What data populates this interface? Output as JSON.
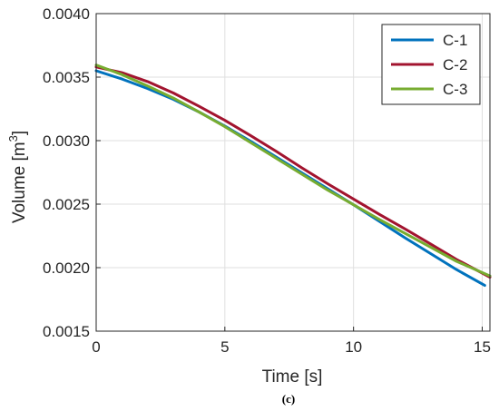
{
  "chart_data": {
    "type": "line",
    "xlabel": "Time [s]",
    "ylabel_main": "Volume [m",
    "ylabel_sup": "3",
    "ylabel_close": "]",
    "caption": "(c)",
    "xlim": [
      0,
      15.3
    ],
    "ylim": [
      0.0015,
      0.004
    ],
    "x_ticks": [
      0,
      5,
      10,
      15
    ],
    "x_tick_labels": [
      "0",
      "5",
      "10",
      "15"
    ],
    "y_ticks": [
      0.0015,
      0.002,
      0.0025,
      0.003,
      0.0035,
      0.004
    ],
    "y_tick_labels": [
      "0.0015",
      "0.0020",
      "0.0025",
      "0.0030",
      "0.0035",
      "0.0040"
    ],
    "grid": true,
    "legend_position": "top-right",
    "colors": {
      "C-1": "#0072bd",
      "C-2": "#a2142f",
      "C-3": "#77ac30"
    },
    "series": [
      {
        "name": "C-1",
        "x": [
          0,
          1,
          2,
          3,
          4,
          5,
          6,
          7,
          8,
          9,
          10,
          11,
          12,
          13,
          14,
          15.1
        ],
        "y": [
          0.00355,
          0.003485,
          0.00341,
          0.003325,
          0.003225,
          0.003115,
          0.002995,
          0.00287,
          0.002745,
          0.00262,
          0.002495,
          0.002365,
          0.002235,
          0.00211,
          0.001985,
          0.00186
        ]
      },
      {
        "name": "C-2",
        "x": [
          0,
          1,
          2,
          3,
          4,
          5,
          6,
          7,
          8,
          9,
          10,
          11,
          12,
          13,
          14,
          15.3
        ],
        "y": [
          0.00358,
          0.003535,
          0.003465,
          0.003375,
          0.00327,
          0.00316,
          0.00304,
          0.002915,
          0.002785,
          0.00266,
          0.00254,
          0.00242,
          0.002305,
          0.002185,
          0.002065,
          0.001925
        ]
      },
      {
        "name": "C-3",
        "x": [
          0,
          1,
          2,
          3,
          4,
          5,
          6,
          7,
          8,
          9,
          10,
          11,
          12,
          13,
          14,
          15.3
        ],
        "y": [
          0.003595,
          0.00352,
          0.00343,
          0.003335,
          0.003225,
          0.00311,
          0.002985,
          0.00286,
          0.002735,
          0.00261,
          0.002495,
          0.00238,
          0.00227,
          0.00216,
          0.00205,
          0.001935
        ]
      }
    ]
  }
}
